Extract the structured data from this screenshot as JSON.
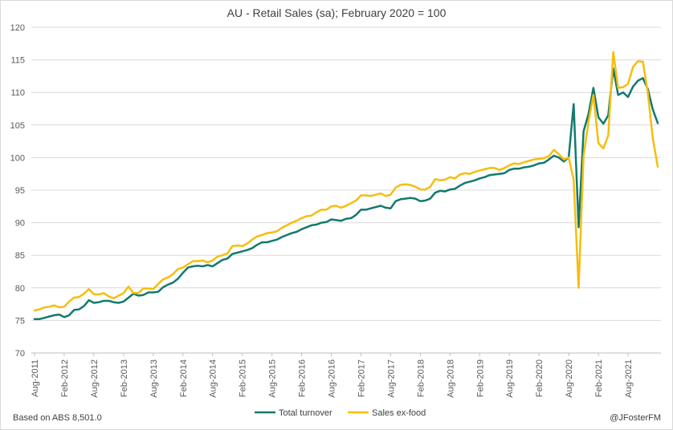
{
  "chart_data": {
    "type": "line",
    "title": "AU - Retail Sales (sa); February 2020 = 100",
    "xlabel": "",
    "ylabel": "",
    "ylim": [
      70,
      120
    ],
    "yticks": [
      70,
      75,
      80,
      85,
      90,
      95,
      100,
      105,
      110,
      115,
      120
    ],
    "grid": "horizontal",
    "legend_position": "bottom",
    "x_start": "2011-08",
    "x_frequency": "monthly",
    "x_tick_labels": [
      "Aug-2011",
      "Feb-2012",
      "Aug-2012",
      "Feb-2013",
      "Aug-2013",
      "Feb-2014",
      "Aug-2014",
      "Feb-2015",
      "Aug-2015",
      "Feb-2016",
      "Aug-2016",
      "Feb-2017",
      "Aug-2017",
      "Feb-2018",
      "Aug-2018",
      "Feb-2019",
      "Aug-2019",
      "Feb-2020",
      "Aug-2020",
      "Feb-2021",
      "Aug-2021"
    ],
    "series": [
      {
        "name": "Total turnover",
        "color": "#127a6e",
        "values": [
          75.2,
          75.2,
          75.4,
          75.6,
          75.8,
          75.9,
          75.5,
          75.8,
          76.6,
          76.7,
          77.2,
          78.1,
          77.7,
          77.8,
          78.0,
          78.0,
          77.8,
          77.7,
          77.9,
          78.5,
          79.1,
          78.8,
          78.9,
          79.3,
          79.3,
          79.4,
          80.1,
          80.5,
          80.8,
          81.4,
          82.3,
          83.1,
          83.3,
          83.4,
          83.3,
          83.5,
          83.3,
          83.8,
          84.3,
          84.5,
          85.2,
          85.4,
          85.6,
          85.8,
          86.1,
          86.6,
          87.0,
          87.0,
          87.2,
          87.4,
          87.8,
          88.1,
          88.4,
          88.6,
          89.0,
          89.3,
          89.6,
          89.7,
          90.0,
          90.1,
          90.5,
          90.4,
          90.3,
          90.6,
          90.7,
          91.2,
          92.0,
          92.0,
          92.2,
          92.4,
          92.6,
          92.3,
          92.2,
          93.3,
          93.6,
          93.7,
          93.8,
          93.7,
          93.3,
          93.4,
          93.7,
          94.6,
          94.9,
          94.8,
          95.1,
          95.2,
          95.7,
          96.1,
          96.3,
          96.5,
          96.8,
          97.0,
          97.3,
          97.4,
          97.5,
          97.6,
          98.1,
          98.3,
          98.3,
          98.5,
          98.6,
          98.8,
          99.1,
          99.2,
          99.7,
          100.3,
          100.0,
          99.4,
          100.0,
          108.2,
          89.3,
          104.0,
          106.7,
          110.7,
          106.2,
          105.2,
          106.5,
          113.7,
          109.6,
          110.0,
          109.3,
          110.9,
          111.8,
          112.2,
          110.5,
          107.4,
          105.3
        ]
      },
      {
        "name": "Sales ex-food",
        "color": "#f5be0f",
        "values": [
          76.5,
          76.7,
          77.0,
          77.1,
          77.3,
          77.0,
          77.1,
          77.9,
          78.5,
          78.6,
          79.1,
          79.8,
          79.0,
          79.0,
          79.2,
          78.7,
          78.4,
          78.8,
          79.2,
          80.2,
          79.2,
          79.2,
          79.9,
          79.9,
          79.8,
          80.6,
          81.3,
          81.6,
          82.1,
          82.9,
          83.1,
          83.6,
          84.1,
          84.1,
          84.2,
          83.9,
          84.2,
          84.8,
          85.0,
          85.3,
          86.4,
          86.5,
          86.4,
          86.8,
          87.4,
          87.9,
          88.1,
          88.4,
          88.5,
          88.7,
          89.2,
          89.6,
          90.0,
          90.3,
          90.7,
          91.0,
          91.1,
          91.6,
          92.0,
          92.0,
          92.5,
          92.6,
          92.3,
          92.6,
          93.0,
          93.4,
          94.2,
          94.2,
          94.1,
          94.3,
          94.5,
          94.1,
          94.3,
          95.4,
          95.8,
          95.9,
          95.8,
          95.5,
          95.1,
          95.1,
          95.5,
          96.7,
          96.5,
          96.6,
          97.0,
          96.8,
          97.4,
          97.6,
          97.5,
          97.8,
          98.0,
          98.2,
          98.4,
          98.4,
          98.1,
          98.4,
          98.8,
          99.1,
          99.0,
          99.3,
          99.5,
          99.7,
          99.8,
          99.9,
          100.2,
          101.2,
          100.5,
          99.7,
          100.0,
          96.6,
          80.0,
          100.2,
          105.5,
          109.6,
          102.2,
          101.4,
          103.4,
          116.2,
          110.7,
          110.8,
          111.3,
          113.9,
          114.8,
          114.7,
          109.9,
          103.0,
          98.6
        ]
      }
    ]
  },
  "footer": {
    "source_note": "Based on ABS 8,501.0",
    "credit": "@JFosterFM"
  }
}
